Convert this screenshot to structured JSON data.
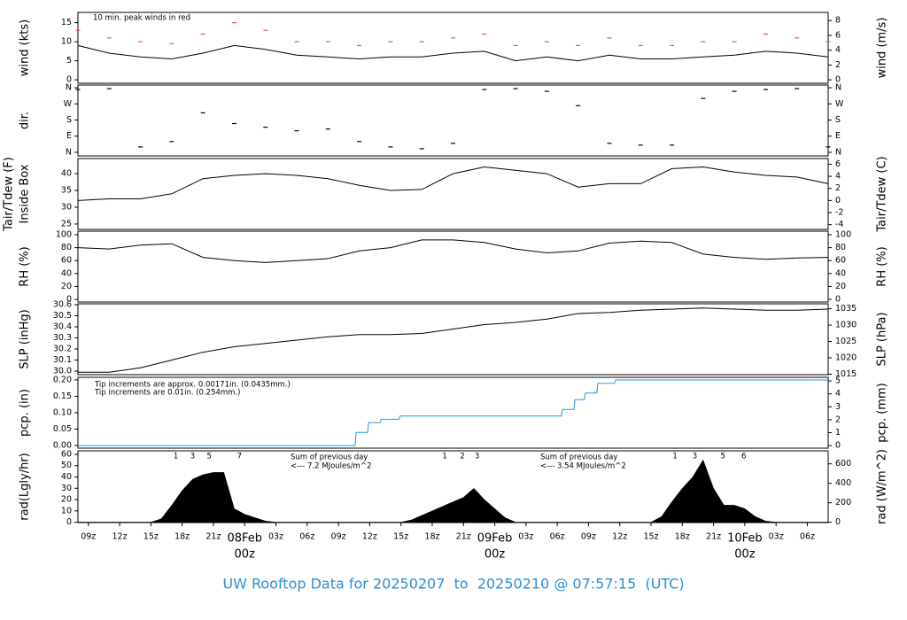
{
  "title": "UW Rooftop Data for 20250207  to  20250210 @ 07:57:15  (UTC)",
  "chart_data": [
    {
      "type": "line",
      "ylabel": "wind (kts)",
      "y2label": "wind (m/s)",
      "annotations": [
        {
          "text": "10 min. peak winds in red",
          "color": "#df536b"
        }
      ],
      "xlim": [
        8,
        80
      ],
      "ylim": [
        -0.9,
        17.7
      ],
      "yticks": [
        0,
        5,
        10,
        15
      ],
      "y2lim": [
        -0.46,
        9.1
      ],
      "y2ticks": [
        0,
        2,
        4,
        6,
        8
      ],
      "x": [
        8,
        11,
        14,
        17,
        20,
        23,
        26,
        29,
        32,
        35,
        38,
        41,
        44,
        47,
        50,
        53,
        56,
        59,
        62,
        65,
        68,
        71,
        74,
        77,
        80
      ],
      "series": [
        {
          "color": "#000000",
          "values": [
            9,
            7,
            6,
            5.5,
            7,
            9,
            8,
            6.5,
            6,
            5.5,
            6,
            6,
            7,
            7.5,
            5,
            6,
            5,
            6.5,
            5.5,
            5.5,
            6,
            6.5,
            7.5,
            7,
            6
          ]
        },
        {
          "color": "#df536b",
          "marker": "dash",
          "values": [
            13,
            11,
            10,
            9.5,
            12,
            15,
            13,
            10,
            10,
            9,
            10,
            10,
            11,
            12,
            9,
            10,
            9,
            11,
            9,
            9,
            10,
            10,
            12,
            11,
            10
          ]
        }
      ]
    },
    {
      "type": "scatter",
      "ylabel": "dir.",
      "y2label": "",
      "xlim": [
        8,
        80
      ],
      "ylim": [
        -20,
        375
      ],
      "yticks": [
        {
          "value": 0,
          "label": "N"
        },
        {
          "value": 90,
          "label": "E"
        },
        {
          "value": 180,
          "label": "S"
        },
        {
          "value": 270,
          "label": "W"
        },
        {
          "value": 360,
          "label": "N"
        }
      ],
      "y2lim": [
        -20,
        375
      ],
      "y2ticks": [
        {
          "value": 0,
          "label": "N"
        },
        {
          "value": 90,
          "label": "E"
        },
        {
          "value": 180,
          "label": "S"
        },
        {
          "value": 270,
          "label": "W"
        },
        {
          "value": 360,
          "label": "N"
        }
      ],
      "x": [
        8,
        11,
        14,
        17,
        20,
        23,
        26,
        29,
        32,
        35,
        38,
        41,
        44,
        47,
        50,
        53,
        56,
        59,
        62,
        65,
        68,
        71,
        74,
        77,
        80
      ],
      "series": [
        {
          "color": "#000000",
          "marker": "dash",
          "values": [
            350,
            355,
            30,
            60,
            220,
            160,
            140,
            120,
            130,
            60,
            30,
            20,
            50,
            350,
            355,
            340,
            260,
            50,
            40,
            40,
            300,
            340,
            350,
            355,
            30
          ]
        }
      ]
    },
    {
      "type": "line",
      "ylabel": [
        "Tair/Tdew (F)",
        "Inside Box"
      ],
      "y2label": "Tair/Tdew (C)",
      "xlim": [
        8,
        80
      ],
      "ylim": [
        23.4,
        44.5
      ],
      "yticks": [
        25,
        30,
        35,
        40
      ],
      "y2lim": [
        -4.78,
        6.94
      ],
      "y2ticks": [
        -4,
        -2,
        0,
        2,
        4,
        6
      ],
      "x": [
        8,
        11,
        14,
        17,
        20,
        23,
        26,
        29,
        32,
        35,
        38,
        41,
        44,
        47,
        50,
        53,
        56,
        59,
        62,
        65,
        68,
        71,
        74,
        77,
        80
      ],
      "series": [
        {
          "color": "#000000",
          "values": [
            32,
            32.5,
            32.5,
            34,
            38.5,
            39.5,
            40,
            39.5,
            38.5,
            36.5,
            35,
            35.3,
            40,
            42,
            41,
            40,
            36,
            37,
            37,
            41.5,
            42,
            40.5,
            39.5,
            39,
            37
          ]
        }
      ]
    },
    {
      "type": "line",
      "ylabel": "RH (%)",
      "y2label": "RH (%)",
      "xlim": [
        8,
        80
      ],
      "ylim": [
        -4.1,
        105.5
      ],
      "yticks": [
        0,
        20,
        40,
        60,
        80,
        100
      ],
      "y2lim": [
        -4.1,
        105.5
      ],
      "y2ticks": [
        0,
        20,
        40,
        60,
        80,
        100
      ],
      "x": [
        8,
        11,
        14,
        17,
        20,
        23,
        26,
        29,
        32,
        35,
        38,
        41,
        44,
        47,
        50,
        53,
        56,
        59,
        62,
        65,
        68,
        71,
        74,
        77,
        80
      ],
      "series": [
        {
          "color": "#000000",
          "values": [
            80,
            78,
            84,
            86,
            65,
            60,
            57,
            60,
            63,
            75,
            80,
            92,
            92,
            88,
            78,
            72,
            75,
            87,
            90,
            88,
            70,
            65,
            62,
            64,
            65
          ]
        }
      ]
    },
    {
      "type": "line",
      "ylabel": "SLP (inHg)",
      "y2label": "SLP (hPa)",
      "xlim": [
        8,
        80
      ],
      "ylim": [
        29.968,
        30.608
      ],
      "yticks": [
        {
          "value": 30,
          "label": "30.0"
        },
        30.1,
        30.2,
        30.3,
        30.4,
        30.5,
        30.6
      ],
      "y2lim": [
        1014.84,
        1036.51
      ],
      "y2ticks": [
        1015,
        1020,
        1025,
        1030,
        1035
      ],
      "x": [
        8,
        11,
        14,
        17,
        20,
        23,
        26,
        29,
        32,
        35,
        38,
        41,
        44,
        47,
        50,
        53,
        56,
        59,
        62,
        65,
        68,
        71,
        74,
        77,
        80
      ],
      "series": [
        {
          "color": "#000000",
          "values": [
            29.99,
            29.99,
            30.03,
            30.1,
            30.17,
            30.22,
            30.25,
            30.28,
            30.31,
            30.33,
            30.33,
            30.34,
            30.38,
            30.42,
            30.44,
            30.47,
            30.52,
            30.53,
            30.55,
            30.56,
            30.57,
            30.56,
            30.55,
            30.55,
            30.56
          ]
        }
      ]
    },
    {
      "type": "line",
      "ylabel": "pcp. (in)",
      "y2label": "pcp. (mm)",
      "annotations": [
        {
          "text": "Tip increments are approx. 0.00171in. (0.0435mm.)",
          "color": "#df536b"
        },
        {
          "text": "Tip increments are 0.01in. (0.254mm.)",
          "color": "#2297e6"
        }
      ],
      "xlim": [
        8,
        80
      ],
      "ylim": [
        -0.008,
        0.208
      ],
      "yticks": [
        {
          "value": 0,
          "label": "0.00"
        },
        {
          "value": 0.05,
          "label": "0.05"
        },
        {
          "value": 0.1,
          "label": "0.10"
        },
        {
          "value": 0.15,
          "label": "0.15"
        },
        {
          "value": 0.2,
          "label": "0.20"
        }
      ],
      "y2lim": [
        -0.2,
        5.28
      ],
      "y2ticks": [
        0,
        1,
        2,
        3,
        4,
        5
      ],
      "x": [
        8,
        34.6,
        34.7,
        35.8,
        35.9,
        37,
        37.1,
        38.8,
        38.9,
        54.4,
        54.5,
        55.6,
        55.7,
        56.6,
        56.7,
        57.8,
        57.9,
        59.5,
        59.6,
        80
      ],
      "series": [
        {
          "color": "#2297e6",
          "values": [
            0,
            0,
            0.04,
            0.04,
            0.07,
            0.07,
            0.08,
            0.08,
            0.09,
            0.09,
            0.11,
            0.11,
            0.14,
            0.14,
            0.16,
            0.16,
            0.19,
            0.19,
            0.2,
            0.2
          ]
        }
      ]
    },
    {
      "type": "area",
      "ylabel": "rad(Lgly/hr)",
      "y2label": "rad (W/m^2)",
      "annotations": [
        {
          "text": "Sum of previous day",
          "color": "#9928e5"
        },
        {
          "text": "<--- 7.2 MJoules/m^2",
          "color": "#9928e5"
        },
        {
          "text": "Sum of previous day",
          "color": "#9928e5"
        },
        {
          "text": "<--- 3.54 MJoules/m^2",
          "color": "#9928e5"
        }
      ],
      "markers": [
        {
          "x": 17.4,
          "label": "1"
        },
        {
          "x": 19,
          "label": "3"
        },
        {
          "x": 20.6,
          "label": "5"
        },
        {
          "x": 23.5,
          "label": "7"
        },
        {
          "x": 43.2,
          "label": "1"
        },
        {
          "x": 44.9,
          "label": "2"
        },
        {
          "x": 46.3,
          "label": "3"
        },
        {
          "x": 65.3,
          "label": "1"
        },
        {
          "x": 67.2,
          "label": "3"
        },
        {
          "x": 69.9,
          "label": "5"
        },
        {
          "x": 71.9,
          "label": "6"
        }
      ],
      "xlim": [
        8,
        80
      ],
      "ylim": [
        -0.33,
        63.1
      ],
      "yticks": [
        0,
        10,
        20,
        30,
        40,
        50,
        60
      ],
      "y2lim": [
        -3.8,
        733.8
      ],
      "y2ticks": [
        0,
        200,
        400,
        600
      ],
      "xticks": [
        {
          "value": 9,
          "label": "09z"
        },
        {
          "value": 12,
          "label": "12z"
        },
        {
          "value": 15,
          "label": "15z"
        },
        {
          "value": 18,
          "label": "18z"
        },
        {
          "value": 21,
          "label": "21z"
        },
        {
          "value": 24,
          "label": "00z"
        },
        {
          "value": 27,
          "label": "03z"
        },
        {
          "value": 30,
          "label": "06z"
        },
        {
          "value": 33,
          "label": "09z"
        },
        {
          "value": 36,
          "label": "12z"
        },
        {
          "value": 39,
          "label": "15z"
        },
        {
          "value": 42,
          "label": "18z"
        },
        {
          "value": 45,
          "label": "21z"
        },
        {
          "value": 48,
          "label": "00z"
        },
        {
          "value": 51,
          "label": "03z"
        },
        {
          "value": 54,
          "label": "06z"
        },
        {
          "value": 57,
          "label": "09z"
        },
        {
          "value": 60,
          "label": "12z"
        },
        {
          "value": 63,
          "label": "15z"
        },
        {
          "value": 66,
          "label": "18z"
        },
        {
          "value": 69,
          "label": "21z"
        },
        {
          "value": 72,
          "label": "00z"
        },
        {
          "value": 75,
          "label": "03z"
        },
        {
          "value": 78,
          "label": "06z"
        }
      ],
      "date_labels": [
        {
          "value": 24,
          "label": "08Feb"
        },
        {
          "value": 48,
          "label": "09Feb"
        },
        {
          "value": 72,
          "label": "10Feb"
        }
      ],
      "x": [
        8,
        9,
        10,
        11,
        12,
        13,
        14,
        15,
        16,
        17,
        18,
        19,
        20,
        21,
        22,
        23,
        24,
        25,
        26,
        27,
        28,
        29,
        30,
        31,
        32,
        33,
        34,
        35,
        36,
        37,
        38,
        39,
        40,
        41,
        42,
        43,
        44,
        45,
        46,
        47,
        48,
        49,
        50,
        51,
        52,
        53,
        54,
        55,
        56,
        57,
        58,
        59,
        60,
        61,
        62,
        63,
        64,
        65,
        66,
        67,
        68,
        69,
        70,
        71,
        72,
        73,
        74,
        75,
        76,
        77,
        78,
        79,
        80
      ],
      "series": [
        {
          "color": "#000000",
          "values": [
            0,
            0,
            0,
            0,
            0,
            0,
            0,
            0,
            3,
            15,
            28,
            38,
            42,
            44,
            44,
            12,
            7,
            4,
            1,
            0,
            0,
            0,
            0,
            0,
            0,
            0,
            0,
            0,
            0,
            0,
            0,
            0,
            2,
            6,
            10,
            14,
            18,
            22,
            30,
            20,
            12,
            4,
            0,
            0,
            0,
            0,
            0,
            0,
            0,
            0,
            0,
            0,
            0,
            0,
            0,
            0,
            5,
            18,
            30,
            40,
            55,
            30,
            15,
            15,
            12,
            5,
            1,
            0,
            0,
            0,
            0,
            0,
            0
          ]
        }
      ]
    }
  ]
}
